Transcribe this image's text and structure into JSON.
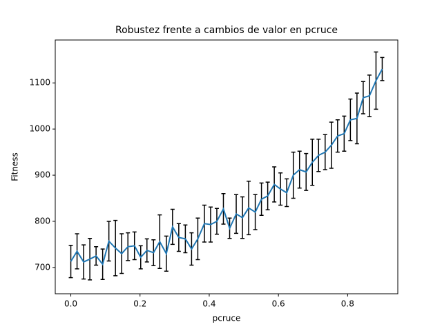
{
  "chart_data": {
    "type": "errorbar-line",
    "title": "Robustez frente a cambios de valor en pcruce",
    "xlabel": "pcruce",
    "ylabel": "Fitness",
    "x": [
      0,
      0.018,
      0.037,
      0.055,
      0.073,
      0.092,
      0.11,
      0.129,
      0.147,
      0.165,
      0.184,
      0.202,
      0.22,
      0.239,
      0.257,
      0.276,
      0.294,
      0.312,
      0.331,
      0.349,
      0.367,
      0.386,
      0.404,
      0.422,
      0.441,
      0.459,
      0.478,
      0.496,
      0.514,
      0.533,
      0.551,
      0.569,
      0.588,
      0.606,
      0.624,
      0.643,
      0.661,
      0.68,
      0.698,
      0.716,
      0.735,
      0.753,
      0.771,
      0.79,
      0.808,
      0.827,
      0.845,
      0.863,
      0.882,
      0.9
    ],
    "series": [
      {
        "color": "#1f77b4",
        "error_color": "#000000",
        "values": [
          713,
          735,
          712,
          718,
          725,
          707,
          757,
          742,
          730,
          745,
          747,
          722,
          737,
          732,
          756,
          730,
          788,
          765,
          762,
          740,
          762,
          795,
          793,
          800,
          827,
          785,
          816,
          808,
          829,
          820,
          848,
          855,
          880,
          870,
          862,
          900,
          912,
          907,
          928,
          943,
          950,
          965,
          985,
          990,
          1020,
          1023,
          1068,
          1072,
          1105,
          1130
        ],
        "errors": [
          35,
          38,
          37,
          45,
          20,
          33,
          43,
          60,
          43,
          30,
          30,
          25,
          25,
          28,
          58,
          38,
          38,
          30,
          30,
          35,
          45,
          40,
          38,
          28,
          33,
          22,
          42,
          45,
          58,
          38,
          35,
          30,
          38,
          35,
          30,
          50,
          40,
          40,
          50,
          35,
          38,
          50,
          35,
          38,
          45,
          55,
          35,
          45,
          62,
          25
        ]
      }
    ],
    "xlim": [
      -0.045,
      0.945
    ],
    "ylim": [
      643,
      1193
    ],
    "xticks": [
      {
        "value": 0,
        "label": "0.0"
      },
      0.2,
      0.4,
      0.6,
      0.8
    ],
    "yticks": [
      700,
      800,
      900,
      1000,
      1100
    ]
  }
}
